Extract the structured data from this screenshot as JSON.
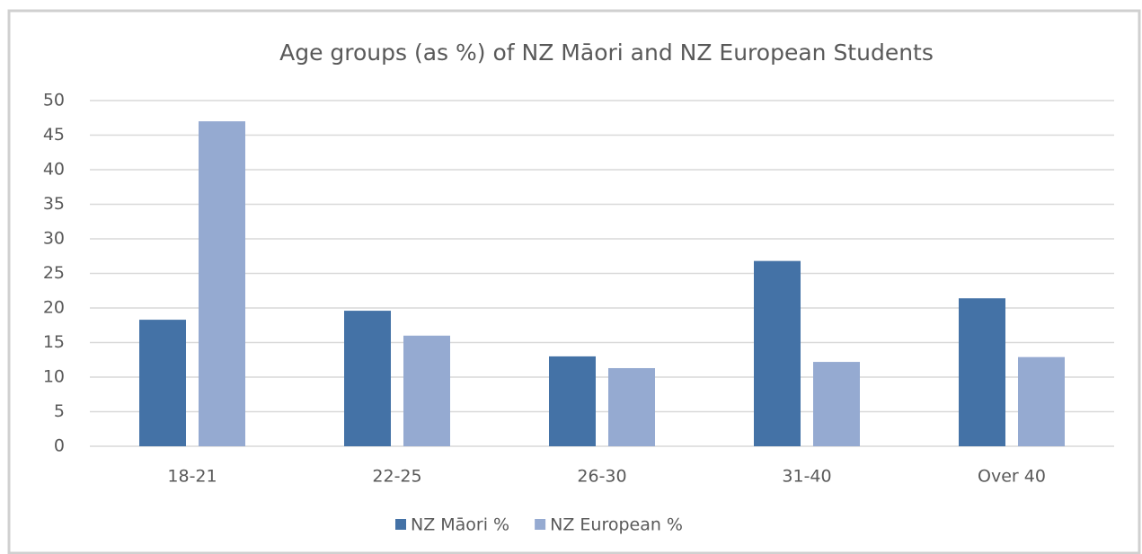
{
  "chart_data": {
    "type": "bar",
    "title": "Age groups (as %) of NZ Māori  and NZ European Students",
    "categories": [
      "18-21",
      "22-25",
      "26-30",
      "31-40",
      "Over 40"
    ],
    "series": [
      {
        "name": "NZ Māori %",
        "color": "#4472a6",
        "values": [
          18.3,
          19.6,
          13.0,
          26.8,
          21.4
        ]
      },
      {
        "name": "NZ European %",
        "color": "#95aad1",
        "values": [
          47.0,
          16.0,
          11.3,
          12.2,
          12.9
        ]
      }
    ],
    "ylim": [
      0,
      50
    ],
    "yticks": [
      0,
      5,
      10,
      15,
      20,
      25,
      30,
      35,
      40,
      45,
      50
    ],
    "grid": true,
    "legend": "bottom"
  }
}
